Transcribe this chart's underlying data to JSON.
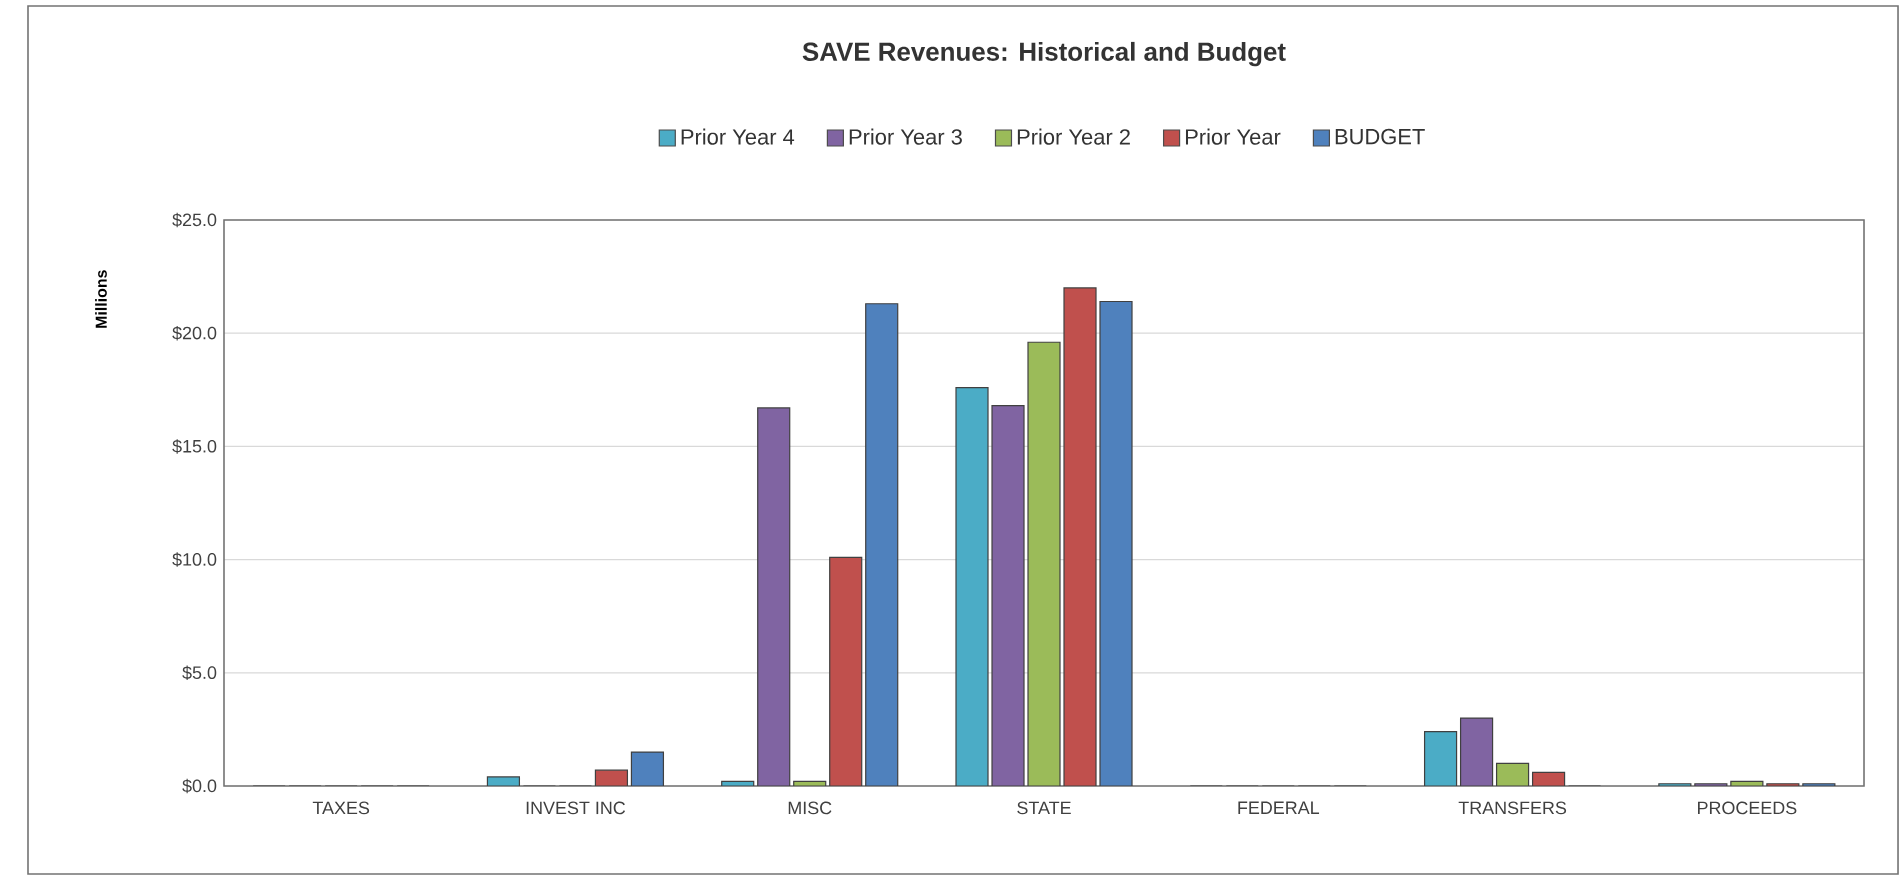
{
  "chart_data": {
    "type": "bar",
    "title": "SAVE Revenues: Historical and Budget",
    "ylabel": "Millions",
    "categories": [
      "TAXES",
      "INVEST INC",
      "MISC",
      "STATE",
      "FEDERAL",
      "TRANSFERS",
      "PROCEEDS"
    ],
    "series": [
      {
        "name": "Prior Year 4",
        "color": "#4bacc6",
        "values": [
          0,
          0.4,
          0.2,
          17.6,
          0,
          2.4,
          0.1
        ]
      },
      {
        "name": "Prior Year 3",
        "color": "#8064a2",
        "values": [
          0,
          0,
          16.7,
          16.8,
          0,
          3.0,
          0.1
        ]
      },
      {
        "name": "Prior Year 2",
        "color": "#9bbb59",
        "values": [
          0,
          0,
          0.2,
          19.6,
          0,
          1.0,
          0.2
        ]
      },
      {
        "name": "Prior Year",
        "color": "#c0504d",
        "values": [
          0,
          0.7,
          10.1,
          22.0,
          0,
          0.6,
          0.1
        ]
      },
      {
        "name": "BUDGET",
        "color": "#4f81bd",
        "values": [
          0,
          1.5,
          21.3,
          21.4,
          0,
          0,
          0.1
        ]
      }
    ],
    "ylim": [
      0,
      25
    ],
    "yticks": [
      {
        "value": 0,
        "label": "$0.0"
      },
      {
        "value": 5,
        "label": "$5.0"
      },
      {
        "value": 10,
        "label": "$10.0"
      },
      {
        "value": 15,
        "label": "$15.0"
      },
      {
        "value": 20,
        "label": "$20.0"
      },
      {
        "value": 25,
        "label": "$25.0"
      }
    ],
    "grid": "y",
    "legend": "top"
  }
}
